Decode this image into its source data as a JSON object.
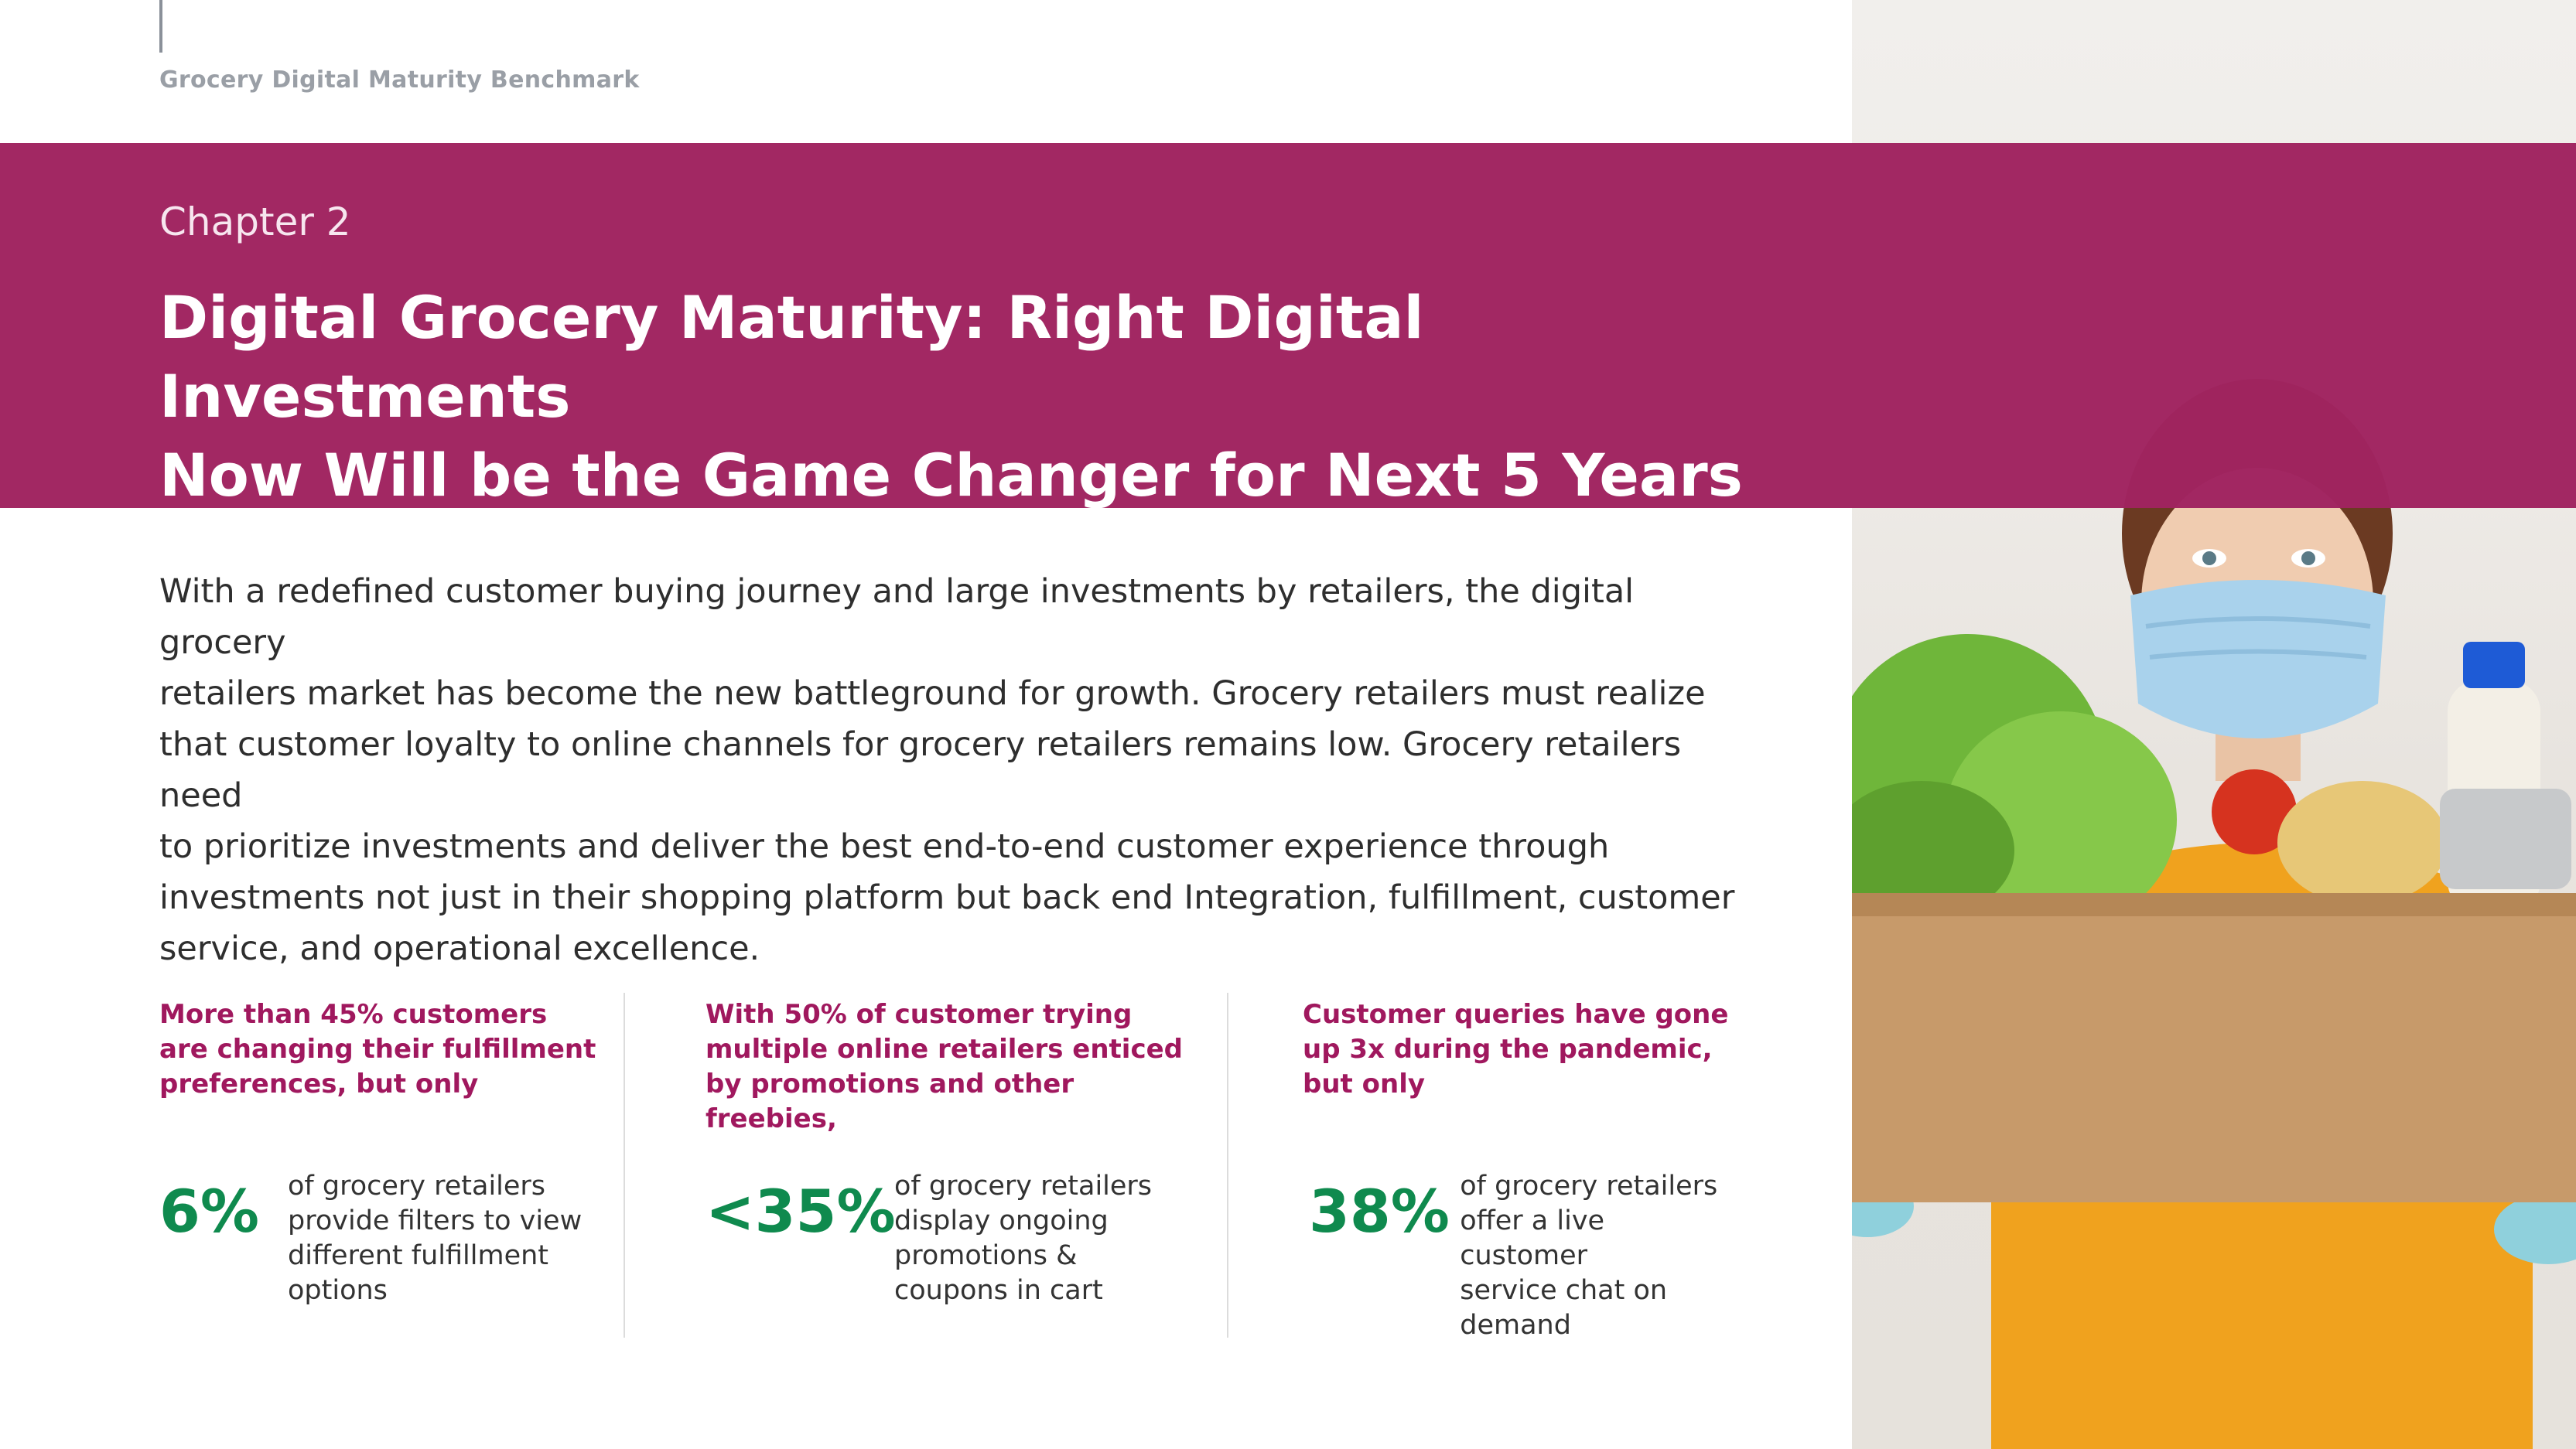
{
  "header": {
    "running_title": "Grocery Digital Maturity Benchmark"
  },
  "banner": {
    "chapter": "Chapter 2",
    "title_line1": "Digital Grocery Maturity: Right Digital Investments",
    "title_line2": "Now Will be the Game Changer for Next 5 Years",
    "color": "#a02460"
  },
  "intro": {
    "lines": [
      "With a redefined customer buying journey and large investments by retailers, the digital grocery",
      "retailers market has become the new battleground for growth. Grocery retailers must realize",
      "that customer loyalty to online channels for grocery retailers remains low. Grocery retailers need",
      "to prioritize investments and deliver the best end-to-end customer experience through",
      "investments not just in their shopping platform but back end Integration, fulfillment, customer",
      "service, and operational excellence."
    ]
  },
  "stats": [
    {
      "head_lines": [
        "More than 45% customers",
        "are changing their fulfillment",
        "preferences, but only"
      ],
      "value": "6%",
      "desc_lines": [
        "of grocery retailers",
        "provide filters to view",
        "different fulfillment",
        "options"
      ]
    },
    {
      "head_lines": [
        "With 50% of customer trying",
        "multiple online retailers enticed",
        "by promotions and other",
        "freebies,"
      ],
      "value": "<35%",
      "desc_lines": [
        "of grocery retailers",
        "display ongoing",
        "promotions &",
        "coupons in cart"
      ]
    },
    {
      "head_lines": [
        "Customer queries have gone",
        "up 3x during the pandemic,",
        "but only"
      ],
      "value": "38%",
      "desc_lines": [
        "of grocery retailers",
        "offer a live customer",
        "service chat on",
        "demand"
      ]
    }
  ],
  "colors": {
    "accent_magenta": "#a0185e",
    "stat_green": "#0f8a4e"
  },
  "photo": {
    "icon": "woman-with-mask-holding-grocery-box"
  }
}
